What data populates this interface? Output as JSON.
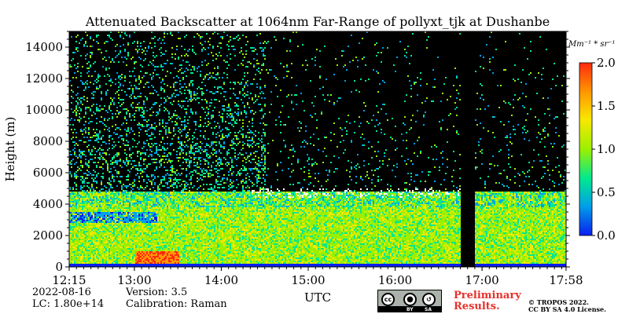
{
  "chart_data": {
    "type": "heatmap",
    "title": "Attenuated Backscatter at 1064nm Far-Range of pollyxt_tjk at Dushanbe",
    "xlabel": "UTC",
    "ylabel": "Height (m)",
    "x_ticks": [
      "12:15",
      "13:00",
      "14:00",
      "15:00",
      "16:00",
      "17:00",
      "17:58"
    ],
    "x_range_hours": [
      12.25,
      17.967
    ],
    "y_ticks": [
      0,
      2000,
      4000,
      6000,
      8000,
      10000,
      12000,
      14000
    ],
    "ylim": [
      0,
      15000
    ],
    "colorbar": {
      "unit": "Mm⁻¹ * sr⁻¹",
      "range": [
        0.0,
        2.0
      ],
      "ticks": [
        "0.0",
        "0.5",
        "1.0",
        "1.5",
        "2.0"
      ],
      "colormap": [
        "#0a1ff0",
        "#00a0e8",
        "#00e890",
        "#9bf000",
        "#f8e800",
        "#ff9800",
        "#ff2a10"
      ]
    },
    "layers": [
      {
        "name": "noise background",
        "height_range": [
          5000,
          15000
        ],
        "level": 0.3
      },
      {
        "name": "aerosol layer",
        "height_range": [
          300,
          4800
        ],
        "level": 1.0
      },
      {
        "name": "enhanced layer near surface",
        "time_range": [
          "13:00",
          "13:30"
        ],
        "height_range": [
          300,
          1000
        ],
        "level": 1.8
      },
      {
        "name": "elevated low-backscatter lens",
        "time_range": [
          "12:15",
          "13:15"
        ],
        "height_range": [
          2900,
          3500
        ],
        "level": 0.1
      },
      {
        "name": "cloud",
        "time_range": [
          "14:20",
          "16:50"
        ],
        "height_range": [
          4500,
          5000
        ],
        "level": 2.0
      }
    ],
    "data_gaps": [
      {
        "time_range": [
          "16:45",
          "16:55"
        ]
      }
    ]
  },
  "metadata": {
    "date": "2022-08-16",
    "version": "Version: 3.5",
    "lc": "LC: 1.80e+14",
    "calibration": "Calibration: Raman"
  },
  "footer": {
    "preliminary_line1": "Preliminary",
    "preliminary_line2": "Results.",
    "copyright_line1": "© TROPOS 2022.",
    "copyright_line2": "CC BY SA 4.0 License.",
    "badge_cc": "cc",
    "badge_by": "BY",
    "badge_sa": "SA"
  }
}
